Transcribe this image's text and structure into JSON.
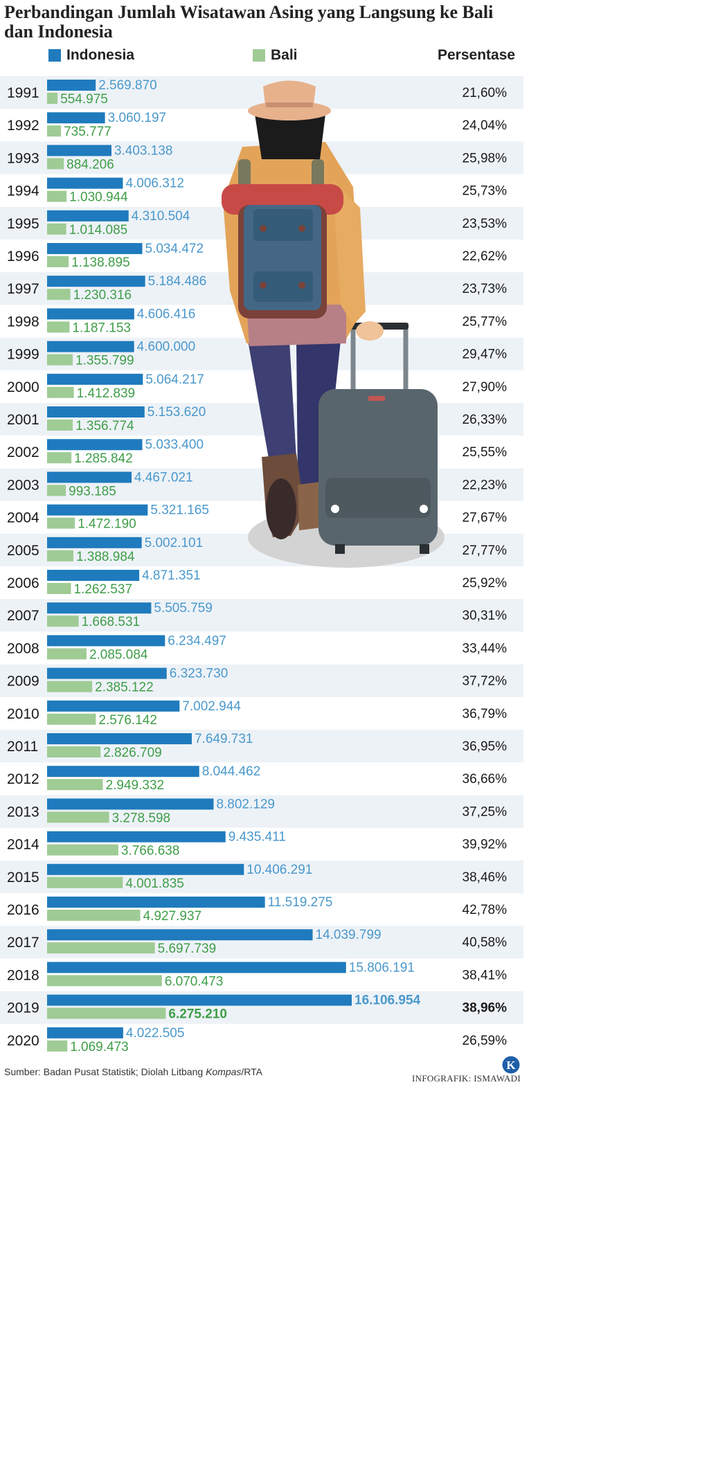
{
  "title": "Perbandingan Jumlah Wisatawan Asing yang Langsung ke Bali dan Indonesia",
  "legend": {
    "indonesia": "Indonesia",
    "bali": "Bali",
    "persentase": "Persentase"
  },
  "colors": {
    "indonesia": "#1f7bbd",
    "bali": "#9fcb95",
    "indonesia_text": "#4a98cc",
    "bali_text": "#3f9d48",
    "stripe": "#edf2f7"
  },
  "footer": {
    "source_prefix": "Sumber: Badan Pusat Statistik; Diolah Litbang ",
    "source_italic": "Kompas",
    "source_suffix": "/RTA",
    "credit": "INFOGRAFIK: ISMAWADI",
    "logo": "K"
  },
  "chart_data": {
    "type": "bar",
    "categories": [
      "1991",
      "1992",
      "1993",
      "1994",
      "1995",
      "1996",
      "1997",
      "1998",
      "1999",
      "2000",
      "2001",
      "2002",
      "2003",
      "2004",
      "2005",
      "2006",
      "2007",
      "2008",
      "2009",
      "2010",
      "2011",
      "2012",
      "2013",
      "2014",
      "2015",
      "2016",
      "2017",
      "2018",
      "2019",
      "2020"
    ],
    "series": [
      {
        "name": "Indonesia",
        "values": [
          2569870,
          3060197,
          3403138,
          4006312,
          4310504,
          5034472,
          5184486,
          4606416,
          4600000,
          5064217,
          5153620,
          5033400,
          4467021,
          5321165,
          5002101,
          4871351,
          5505759,
          6234497,
          6323730,
          7002944,
          7649731,
          8044462,
          8802129,
          9435411,
          10406291,
          11519275,
          14039799,
          15806191,
          16106954,
          4022505
        ],
        "labels": [
          "2.569.870",
          "3.060.197",
          "3.403.138",
          "4.006.312",
          "4.310.504",
          "5.034.472",
          "5.184.486",
          "4.606.416",
          "4.600.000",
          "5.064.217",
          "5.153.620",
          "5.033.400",
          "4.467.021",
          "5.321.165",
          "5.002.101",
          "4.871.351",
          "5.505.759",
          "6.234.497",
          "6.323.730",
          "7.002.944",
          "7.649.731",
          "8.044.462",
          "8.802.129",
          "9.435.411",
          "10.406.291",
          "11.519.275",
          "14.039.799",
          "15.806.191",
          "16.106.954",
          "4.022.505"
        ]
      },
      {
        "name": "Bali",
        "values": [
          554975,
          735777,
          884206,
          1030944,
          1014085,
          1138895,
          1230316,
          1187153,
          1355799,
          1412839,
          1356774,
          1285842,
          993185,
          1472190,
          1388984,
          1262537,
          1668531,
          2085084,
          2385122,
          2576142,
          2826709,
          2949332,
          3278598,
          3766638,
          4001835,
          4927937,
          5697739,
          6070473,
          6275210,
          1069473
        ],
        "labels": [
          "554.975",
          "735.777",
          "884.206",
          "1.030.944",
          "1.014.085",
          "1.138.895",
          "1.230.316",
          "1.187.153",
          "1.355.799",
          "1.412.839",
          "1.356.774",
          "1.285.842",
          "993.185",
          "1.472.190",
          "1.388.984",
          "1.262.537",
          "1.668.531",
          "2.085.084",
          "2.385.122",
          "2.576.142",
          "2.826.709",
          "2.949.332",
          "3.278.598",
          "3.766.638",
          "4.001.835",
          "4.927.937",
          "5.697.739",
          "6.070.473",
          "6.275.210",
          "1.069.473"
        ]
      }
    ],
    "persentase": [
      "21,60%",
      "24,04%",
      "25,98%",
      "25,73%",
      "23,53%",
      "22,62%",
      "23,73%",
      "25,77%",
      "29,47%",
      "27,90%",
      "26,33%",
      "25,55%",
      "22,23%",
      "27,67%",
      "27,77%",
      "25,92%",
      "30,31%",
      "33,44%",
      "37,72%",
      "36,79%",
      "36,95%",
      "36,66%",
      "37,25%",
      "39,92%",
      "38,46%",
      "42,78%",
      "40,58%",
      "38,41%",
      "38,96%",
      "26,59%"
    ],
    "highlight_year": "2019",
    "orientation": "horizontal",
    "legend_position": "top"
  }
}
